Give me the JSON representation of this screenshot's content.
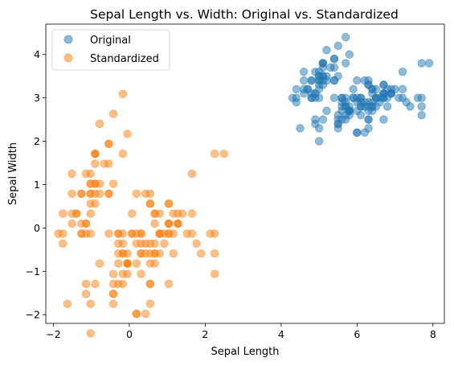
{
  "chart_data": {
    "type": "scatter",
    "title": "Sepal Length vs. Width: Original vs. Standardized",
    "xlabel": "Sepal Length",
    "ylabel": "Sepal Width",
    "xlim": [
      -2.2,
      8.3
    ],
    "ylim": [
      -2.2,
      4.7
    ],
    "x_ticks": [
      -2,
      0,
      2,
      4,
      6,
      8
    ],
    "y_ticks": [
      -2,
      -1,
      0,
      1,
      2,
      3,
      4
    ],
    "grid": false,
    "legend_position": "top-left",
    "series": [
      {
        "name": "Original",
        "color": "#1f77b4",
        "points": [
          [
            5.1,
            3.5
          ],
          [
            4.9,
            3.0
          ],
          [
            4.7,
            3.2
          ],
          [
            4.6,
            3.1
          ],
          [
            5.0,
            3.6
          ],
          [
            5.4,
            3.9
          ],
          [
            4.6,
            3.4
          ],
          [
            5.0,
            3.4
          ],
          [
            4.4,
            2.9
          ],
          [
            4.9,
            3.1
          ],
          [
            5.4,
            3.7
          ],
          [
            4.8,
            3.4
          ],
          [
            4.8,
            3.0
          ],
          [
            4.3,
            3.0
          ],
          [
            5.8,
            4.0
          ],
          [
            5.7,
            4.4
          ],
          [
            5.4,
            3.9
          ],
          [
            5.1,
            3.5
          ],
          [
            5.7,
            3.8
          ],
          [
            5.1,
            3.8
          ],
          [
            5.4,
            3.4
          ],
          [
            5.1,
            3.7
          ],
          [
            4.6,
            3.6
          ],
          [
            5.1,
            3.3
          ],
          [
            4.8,
            3.4
          ],
          [
            5.0,
            3.0
          ],
          [
            5.0,
            3.4
          ],
          [
            5.2,
            3.5
          ],
          [
            5.2,
            3.4
          ],
          [
            4.7,
            3.2
          ],
          [
            4.8,
            3.1
          ],
          [
            5.4,
            3.4
          ],
          [
            5.2,
            4.1
          ],
          [
            5.5,
            4.2
          ],
          [
            4.9,
            3.1
          ],
          [
            5.0,
            3.2
          ],
          [
            5.5,
            3.5
          ],
          [
            4.9,
            3.6
          ],
          [
            4.4,
            3.0
          ],
          [
            5.1,
            3.4
          ],
          [
            5.0,
            3.5
          ],
          [
            4.5,
            2.3
          ],
          [
            4.4,
            3.2
          ],
          [
            5.0,
            3.5
          ],
          [
            5.1,
            3.8
          ],
          [
            4.8,
            3.0
          ],
          [
            5.1,
            3.8
          ],
          [
            4.6,
            3.2
          ],
          [
            5.3,
            3.7
          ],
          [
            5.0,
            3.3
          ],
          [
            7.0,
            3.2
          ],
          [
            6.4,
            3.2
          ],
          [
            6.9,
            3.1
          ],
          [
            5.5,
            2.3
          ],
          [
            6.5,
            2.8
          ],
          [
            5.7,
            2.8
          ],
          [
            6.3,
            3.3
          ],
          [
            4.9,
            2.4
          ],
          [
            6.6,
            2.9
          ],
          [
            5.2,
            2.7
          ],
          [
            5.0,
            2.0
          ],
          [
            5.9,
            3.0
          ],
          [
            6.0,
            2.2
          ],
          [
            6.1,
            2.9
          ],
          [
            5.6,
            2.9
          ],
          [
            6.7,
            3.1
          ],
          [
            5.6,
            3.0
          ],
          [
            5.8,
            2.7
          ],
          [
            6.2,
            2.2
          ],
          [
            5.6,
            2.5
          ],
          [
            5.9,
            3.2
          ],
          [
            6.1,
            2.8
          ],
          [
            6.3,
            2.5
          ],
          [
            6.1,
            2.8
          ],
          [
            6.4,
            2.9
          ],
          [
            6.6,
            3.0
          ],
          [
            6.8,
            2.8
          ],
          [
            6.7,
            3.0
          ],
          [
            6.0,
            2.9
          ],
          [
            5.7,
            2.6
          ],
          [
            5.5,
            2.4
          ],
          [
            5.5,
            2.4
          ],
          [
            5.8,
            2.7
          ],
          [
            6.0,
            2.7
          ],
          [
            5.4,
            3.0
          ],
          [
            6.0,
            3.4
          ],
          [
            6.7,
            3.1
          ],
          [
            6.3,
            2.3
          ],
          [
            5.6,
            3.0
          ],
          [
            5.5,
            2.5
          ],
          [
            5.5,
            2.6
          ],
          [
            6.1,
            3.0
          ],
          [
            5.8,
            2.6
          ],
          [
            5.0,
            2.3
          ],
          [
            5.6,
            2.7
          ],
          [
            5.7,
            3.0
          ],
          [
            5.7,
            2.9
          ],
          [
            6.2,
            2.9
          ],
          [
            5.1,
            2.5
          ],
          [
            5.7,
            2.8
          ],
          [
            6.3,
            3.3
          ],
          [
            5.8,
            2.7
          ],
          [
            7.1,
            3.0
          ],
          [
            6.3,
            2.9
          ],
          [
            6.5,
            3.0
          ],
          [
            7.6,
            3.0
          ],
          [
            4.9,
            2.5
          ],
          [
            7.3,
            2.9
          ],
          [
            6.7,
            2.5
          ],
          [
            7.2,
            3.6
          ],
          [
            6.5,
            3.2
          ],
          [
            6.4,
            2.7
          ],
          [
            6.8,
            3.0
          ],
          [
            5.7,
            2.5
          ],
          [
            5.8,
            2.8
          ],
          [
            6.4,
            3.2
          ],
          [
            6.5,
            3.0
          ],
          [
            7.7,
            3.8
          ],
          [
            7.7,
            2.6
          ],
          [
            6.0,
            2.2
          ],
          [
            6.9,
            3.2
          ],
          [
            5.6,
            2.8
          ],
          [
            7.7,
            2.8
          ],
          [
            6.3,
            2.7
          ],
          [
            6.7,
            3.3
          ],
          [
            7.2,
            3.2
          ],
          [
            6.2,
            2.8
          ],
          [
            6.1,
            3.0
          ],
          [
            6.4,
            2.8
          ],
          [
            7.2,
            3.0
          ],
          [
            7.4,
            2.8
          ],
          [
            7.9,
            3.8
          ],
          [
            6.4,
            2.8
          ],
          [
            6.3,
            2.8
          ],
          [
            6.1,
            2.6
          ],
          [
            7.7,
            3.0
          ],
          [
            6.3,
            3.4
          ],
          [
            6.4,
            3.1
          ],
          [
            6.0,
            3.0
          ],
          [
            6.9,
            3.1
          ],
          [
            6.7,
            3.1
          ],
          [
            6.9,
            3.1
          ],
          [
            5.8,
            2.7
          ],
          [
            6.8,
            3.2
          ],
          [
            6.7,
            3.3
          ],
          [
            6.7,
            3.0
          ],
          [
            6.3,
            2.5
          ],
          [
            6.5,
            3.0
          ],
          [
            6.2,
            3.4
          ],
          [
            5.9,
            3.0
          ]
        ]
      },
      {
        "name": "Standardized",
        "color": "#ff7f0e",
        "points": [
          [
            -0.9,
            1.02
          ],
          [
            -1.14,
            -0.13
          ],
          [
            -1.39,
            0.33
          ],
          [
            -1.51,
            0.1
          ],
          [
            -1.02,
            1.25
          ],
          [
            -0.54,
            1.94
          ],
          [
            -1.51,
            0.79
          ],
          [
            -1.02,
            0.79
          ],
          [
            -1.75,
            -0.36
          ],
          [
            -1.14,
            0.1
          ],
          [
            -0.54,
            1.48
          ],
          [
            -1.26,
            0.79
          ],
          [
            -1.26,
            -0.13
          ],
          [
            -1.87,
            -0.13
          ],
          [
            -0.05,
            2.17
          ],
          [
            -0.17,
            3.09
          ],
          [
            -0.54,
            1.94
          ],
          [
            -0.9,
            1.02
          ],
          [
            -0.17,
            1.71
          ],
          [
            -0.9,
            1.71
          ],
          [
            -0.54,
            0.79
          ],
          [
            -0.9,
            1.48
          ],
          [
            -1.51,
            1.25
          ],
          [
            -0.9,
            0.56
          ],
          [
            -1.26,
            0.79
          ],
          [
            -1.02,
            -0.13
          ],
          [
            -1.02,
            0.79
          ],
          [
            -0.78,
            1.02
          ],
          [
            -0.78,
            0.79
          ],
          [
            -1.39,
            0.33
          ],
          [
            -1.26,
            0.1
          ],
          [
            -0.54,
            0.79
          ],
          [
            -0.78,
            2.4
          ],
          [
            -0.42,
            2.63
          ],
          [
            -1.14,
            0.1
          ],
          [
            -1.02,
            0.33
          ],
          [
            -0.42,
            1.02
          ],
          [
            -1.14,
            1.25
          ],
          [
            -1.75,
            -0.13
          ],
          [
            -0.9,
            0.79
          ],
          [
            -1.02,
            1.02
          ],
          [
            -1.63,
            -1.75
          ],
          [
            -1.75,
            0.33
          ],
          [
            -1.02,
            1.02
          ],
          [
            -0.9,
            1.71
          ],
          [
            -1.26,
            -0.13
          ],
          [
            -0.9,
            1.71
          ],
          [
            -1.51,
            0.33
          ],
          [
            -0.66,
            1.48
          ],
          [
            -1.02,
            0.56
          ],
          [
            1.4,
            0.33
          ],
          [
            0.67,
            0.33
          ],
          [
            1.28,
            0.1
          ],
          [
            -0.42,
            -1.75
          ],
          [
            0.8,
            -0.59
          ],
          [
            -0.17,
            -0.59
          ],
          [
            0.55,
            0.56
          ],
          [
            -1.14,
            -1.52
          ],
          [
            0.92,
            -0.36
          ],
          [
            -0.78,
            -0.82
          ],
          [
            -1.02,
            -2.43
          ],
          [
            0.07,
            -0.13
          ],
          [
            0.19,
            -1.98
          ],
          [
            0.31,
            -0.36
          ],
          [
            -0.29,
            -0.36
          ],
          [
            1.04,
            0.1
          ],
          [
            -0.29,
            -0.13
          ],
          [
            -0.05,
            -0.82
          ],
          [
            0.43,
            -1.98
          ],
          [
            -0.29,
            -1.29
          ],
          [
            0.07,
            0.33
          ],
          [
            0.31,
            -0.59
          ],
          [
            0.55,
            -1.29
          ],
          [
            0.31,
            -0.59
          ],
          [
            0.67,
            -0.36
          ],
          [
            0.92,
            -0.13
          ],
          [
            1.16,
            -0.59
          ],
          [
            1.04,
            -0.13
          ],
          [
            0.19,
            -0.36
          ],
          [
            -0.17,
            -1.06
          ],
          [
            -0.42,
            -1.52
          ],
          [
            -0.42,
            -1.52
          ],
          [
            -0.05,
            -0.82
          ],
          [
            0.19,
            -0.82
          ],
          [
            -0.54,
            -0.13
          ],
          [
            0.19,
            0.79
          ],
          [
            1.04,
            0.1
          ],
          [
            0.55,
            -1.75
          ],
          [
            -0.29,
            -0.13
          ],
          [
            -0.42,
            -1.29
          ],
          [
            -0.42,
            -1.06
          ],
          [
            0.31,
            -0.13
          ],
          [
            -0.05,
            -1.06
          ],
          [
            -1.02,
            -1.75
          ],
          [
            -0.29,
            -0.82
          ],
          [
            -0.17,
            -0.13
          ],
          [
            -0.17,
            -0.36
          ],
          [
            0.43,
            -0.36
          ],
          [
            -0.9,
            -1.29
          ],
          [
            -0.17,
            -0.59
          ],
          [
            0.55,
            0.56
          ],
          [
            -0.05,
            -0.82
          ],
          [
            1.52,
            -0.13
          ],
          [
            0.55,
            -0.36
          ],
          [
            0.8,
            -0.13
          ],
          [
            2.13,
            -0.13
          ],
          [
            -1.14,
            -1.29
          ],
          [
            1.77,
            -0.36
          ],
          [
            1.04,
            -1.29
          ],
          [
            1.65,
            1.25
          ],
          [
            0.8,
            0.33
          ],
          [
            0.67,
            -0.82
          ],
          [
            1.16,
            -0.13
          ],
          [
            -0.17,
            -1.29
          ],
          [
            -0.05,
            -0.59
          ],
          [
            0.67,
            0.33
          ],
          [
            0.8,
            -0.13
          ],
          [
            2.25,
            1.71
          ],
          [
            2.25,
            -1.06
          ],
          [
            0.19,
            -1.98
          ],
          [
            1.28,
            0.33
          ],
          [
            -0.29,
            -0.59
          ],
          [
            2.25,
            -0.59
          ],
          [
            0.55,
            -0.82
          ],
          [
            1.04,
            0.56
          ],
          [
            1.65,
            0.33
          ],
          [
            0.43,
            -0.59
          ],
          [
            0.31,
            -0.13
          ],
          [
            0.67,
            -0.59
          ],
          [
            1.65,
            -0.13
          ],
          [
            1.89,
            -0.59
          ],
          [
            2.49,
            1.71
          ],
          [
            0.67,
            -0.59
          ],
          [
            0.55,
            -0.59
          ],
          [
            0.31,
            -1.06
          ],
          [
            2.25,
            -0.13
          ],
          [
            0.55,
            0.79
          ],
          [
            0.67,
            0.1
          ],
          [
            0.19,
            -0.13
          ],
          [
            1.28,
            0.1
          ],
          [
            1.04,
            0.1
          ],
          [
            1.28,
            0.1
          ],
          [
            -0.05,
            -0.82
          ],
          [
            1.16,
            0.33
          ],
          [
            1.04,
            0.56
          ],
          [
            1.04,
            -0.13
          ],
          [
            0.55,
            -1.29
          ],
          [
            0.8,
            -0.13
          ],
          [
            0.43,
            0.79
          ],
          [
            0.07,
            -0.13
          ]
        ]
      }
    ]
  }
}
